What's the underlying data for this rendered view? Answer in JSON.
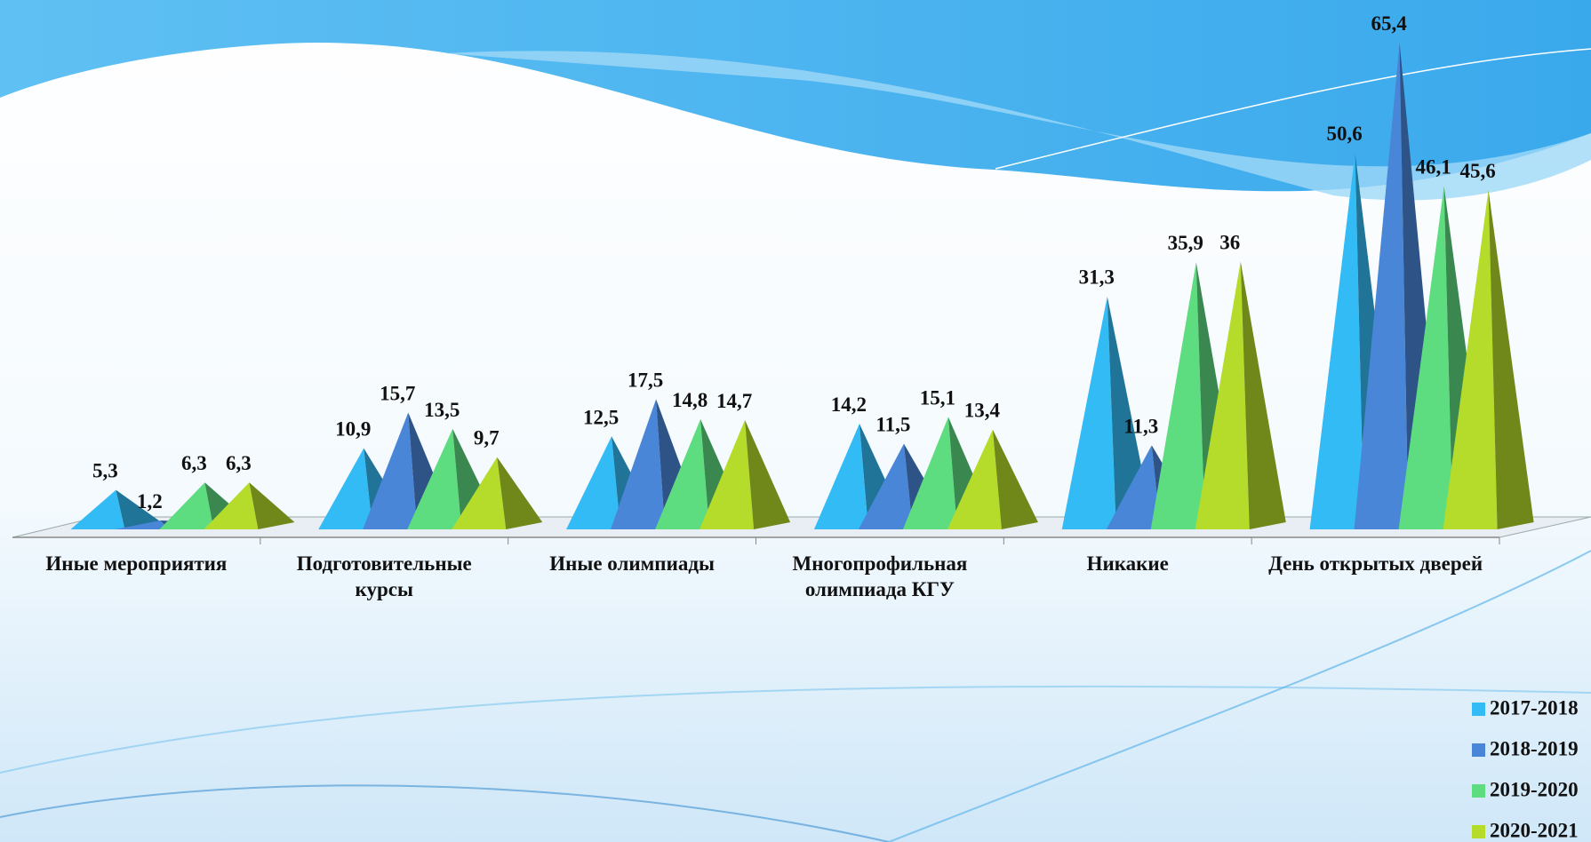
{
  "chart_data": {
    "type": "pyramid",
    "categories": [
      "Иные мероприятия",
      "Подготовительные курсы",
      "Иные олимпиады",
      "Многопрофильная олимпиада КГУ",
      "Никакие",
      "День открытых дверей"
    ],
    "series": [
      {
        "name": "2017-2018",
        "color": "#33bbf5",
        "values": [
          5.3,
          10.9,
          12.5,
          14.2,
          31.3,
          50.6
        ],
        "value_labels": [
          "5,3",
          "10,9",
          "12,5",
          "14,2",
          "31,3",
          "50,6"
        ]
      },
      {
        "name": "2018-2019",
        "color": "#4a86d8",
        "values": [
          1.2,
          15.7,
          17.5,
          11.5,
          11.3,
          65.4
        ],
        "value_labels": [
          "1,2",
          "15,7",
          "17,5",
          "11,5",
          "11,3",
          "65,4"
        ]
      },
      {
        "name": "2019-2020",
        "color": "#5edc80",
        "values": [
          6.3,
          13.5,
          14.8,
          15.1,
          35.9,
          46.1
        ],
        "value_labels": [
          "6,3",
          "13,5",
          "14,8",
          "15,1",
          "35,9",
          "46,1"
        ]
      },
      {
        "name": "2020-2021",
        "color": "#b5dc2a",
        "values": [
          6.3,
          9.7,
          14.7,
          13.4,
          36,
          45.6
        ],
        "value_labels": [
          "6,3",
          "9,7",
          "14,7",
          "13,4",
          "36",
          "45,6"
        ]
      }
    ]
  }
}
